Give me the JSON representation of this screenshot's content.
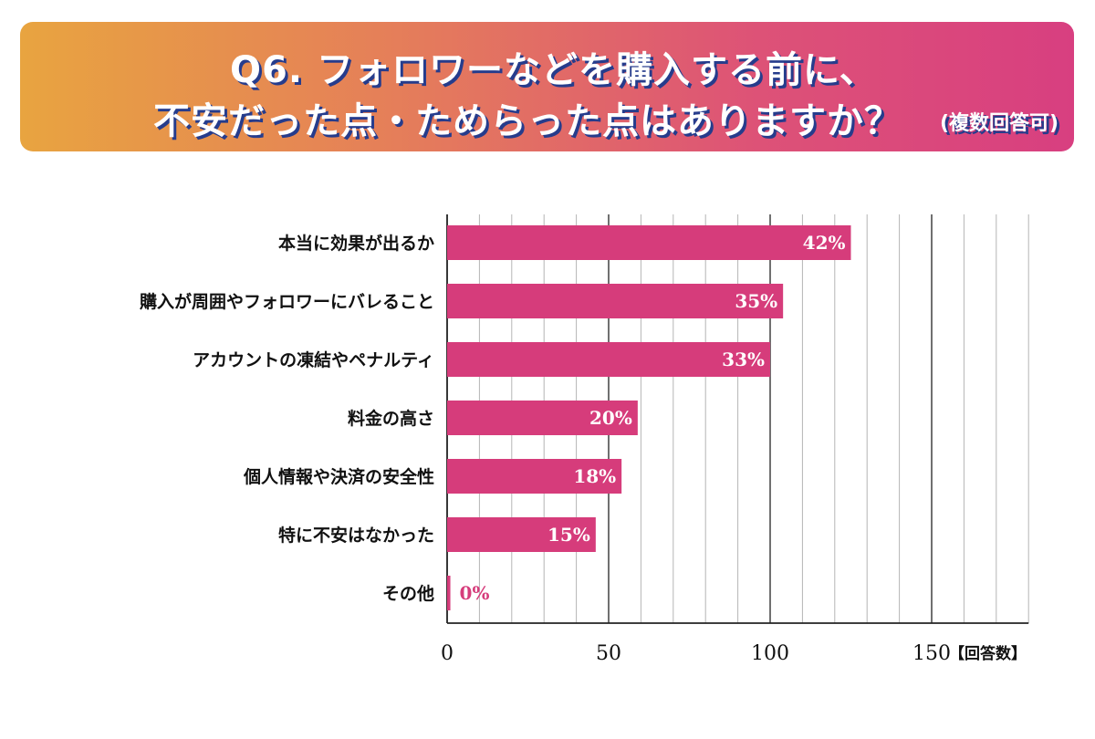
{
  "header": {
    "title_line1": "Q6. フォロワーなどを購入する前に、",
    "title_line2": "不安だった点・ためらった点はありますか？",
    "title_note": "(複数回答可)"
  },
  "colors": {
    "bar": "#d63c7b",
    "label_inside": "#ffffff",
    "label_outside": "#d63c7b",
    "banner_start": "#e8a440",
    "banner_end": "#d83f80",
    "title_shadow": "#263c8c"
  },
  "chart_data": {
    "type": "bar",
    "orientation": "horizontal",
    "categories": [
      "本当に効果が出るか",
      "購入が周囲やフォロワーにバレること",
      "アカウントの凍結やペナルティ",
      "料金の高さ",
      "個人情報や決済の安全性",
      "特に不安はなかった",
      "その他"
    ],
    "values": [
      125,
      104,
      100,
      59,
      54,
      46,
      1
    ],
    "value_labels": [
      "42%",
      "35%",
      "33%",
      "20%",
      "18%",
      "15%",
      "0%"
    ],
    "xlim": [
      0,
      180
    ],
    "x_ticks": [
      0,
      50,
      100,
      150
    ],
    "x_tick_labels": [
      "0",
      "50",
      "100",
      "150"
    ],
    "xunit": "【回答数】",
    "grid": true
  }
}
